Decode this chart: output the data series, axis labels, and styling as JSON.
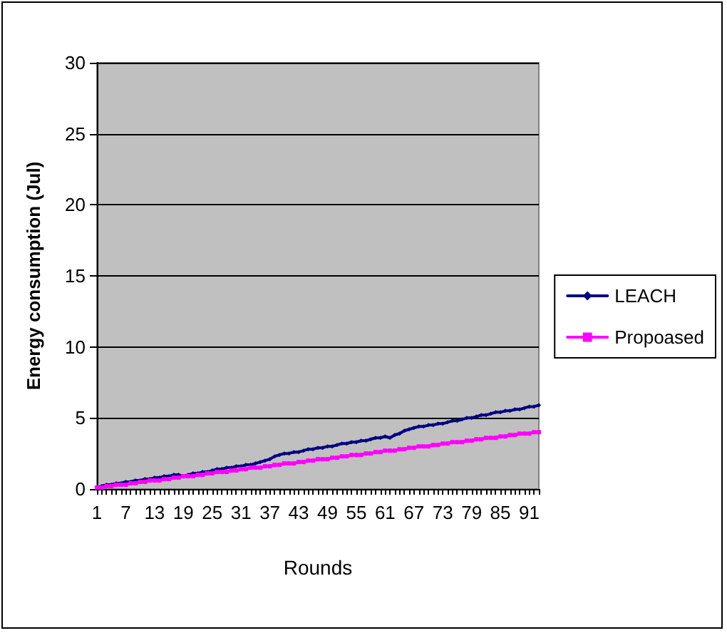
{
  "chart_data": {
    "type": "line",
    "xlabel": "Rounds",
    "ylabel": "Energy consumption (Jul)",
    "categories": [
      "1",
      null,
      null,
      null,
      null,
      null,
      "7",
      null,
      null,
      null,
      null,
      null,
      "13",
      null,
      null,
      null,
      null,
      null,
      "19",
      null,
      null,
      null,
      null,
      null,
      "25",
      null,
      null,
      null,
      null,
      null,
      "31",
      null,
      null,
      null,
      null,
      null,
      "37",
      null,
      null,
      null,
      null,
      null,
      "43",
      null,
      null,
      null,
      null,
      null,
      "49",
      null,
      null,
      null,
      null,
      null,
      "55",
      null,
      null,
      null,
      null,
      null,
      "61",
      null,
      null,
      null,
      null,
      null,
      "67",
      null,
      null,
      null,
      null,
      null,
      "73",
      null,
      null,
      null,
      null,
      null,
      "79",
      null,
      null,
      null,
      null,
      null,
      "85",
      null,
      null,
      null,
      null,
      null,
      "91",
      null,
      null
    ],
    "series": [
      {
        "name": "LEACH",
        "color": "#000080",
        "marker": "diamond",
        "values": [
          0.1,
          0.2,
          0.3,
          0.3,
          0.4,
          0.4,
          0.5,
          0.5,
          0.6,
          0.6,
          0.7,
          0.7,
          0.8,
          0.8,
          0.9,
          0.9,
          1.0,
          1.0,
          0.9,
          1.0,
          1.1,
          1.1,
          1.2,
          1.2,
          1.3,
          1.4,
          1.4,
          1.5,
          1.5,
          1.6,
          1.6,
          1.7,
          1.7,
          1.8,
          1.9,
          2.0,
          2.1,
          2.3,
          2.4,
          2.5,
          2.5,
          2.6,
          2.6,
          2.7,
          2.8,
          2.8,
          2.9,
          2.9,
          3.0,
          3.0,
          3.1,
          3.2,
          3.2,
          3.3,
          3.3,
          3.4,
          3.4,
          3.5,
          3.6,
          3.6,
          3.7,
          3.6,
          3.8,
          3.9,
          4.1,
          4.2,
          4.3,
          4.4,
          4.4,
          4.5,
          4.5,
          4.6,
          4.6,
          4.7,
          4.8,
          4.8,
          4.9,
          5.0,
          5.0,
          5.1,
          5.2,
          5.2,
          5.3,
          5.4,
          5.4,
          5.5,
          5.5,
          5.6,
          5.6,
          5.7,
          5.8,
          5.8,
          5.9
        ]
      },
      {
        "name": "Propoased",
        "color": "#ff00ff",
        "marker": "square",
        "values": [
          0.1,
          0.1,
          0.2,
          0.2,
          0.3,
          0.3,
          0.3,
          0.4,
          0.4,
          0.5,
          0.5,
          0.6,
          0.6,
          0.6,
          0.7,
          0.7,
          0.8,
          0.8,
          0.9,
          0.9,
          0.9,
          1.0,
          1.0,
          1.1,
          1.1,
          1.2,
          1.2,
          1.2,
          1.3,
          1.3,
          1.4,
          1.4,
          1.5,
          1.5,
          1.5,
          1.6,
          1.6,
          1.7,
          1.7,
          1.8,
          1.8,
          1.8,
          1.9,
          1.9,
          2.0,
          2.0,
          2.1,
          2.1,
          2.1,
          2.2,
          2.2,
          2.3,
          2.3,
          2.4,
          2.4,
          2.4,
          2.5,
          2.5,
          2.6,
          2.6,
          2.7,
          2.7,
          2.7,
          2.8,
          2.8,
          2.9,
          2.9,
          3.0,
          3.0,
          3.0,
          3.1,
          3.1,
          3.2,
          3.2,
          3.3,
          3.3,
          3.3,
          3.4,
          3.4,
          3.5,
          3.5,
          3.6,
          3.6,
          3.6,
          3.7,
          3.7,
          3.8,
          3.8,
          3.9,
          3.9,
          3.9,
          4.0,
          4.0
        ]
      }
    ],
    "ylim": [
      0,
      30
    ],
    "yticks": [
      0,
      5,
      10,
      15,
      20,
      25,
      30
    ],
    "grid": "y",
    "legend": "right",
    "line_style": "solid"
  }
}
